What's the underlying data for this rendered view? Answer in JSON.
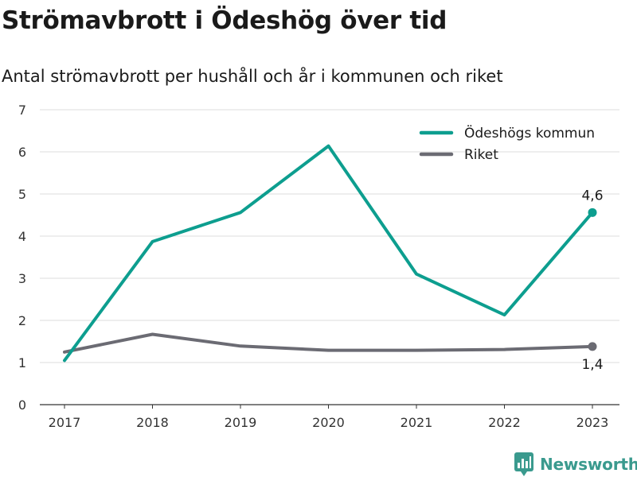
{
  "title": "Strömavbrott i Ödeshög över tid",
  "subtitle": "Antal strömavbrott per hushåll och år i kommunen och riket",
  "brand": "Newsworthy",
  "chart_data": {
    "type": "line",
    "x": [
      "2017",
      "2018",
      "2019",
      "2020",
      "2021",
      "2022",
      "2023"
    ],
    "ylim": [
      0,
      7
    ],
    "yticks": [
      0,
      1,
      2,
      3,
      4,
      5,
      6,
      7
    ],
    "grid": true,
    "legend_position": "top-right",
    "series": [
      {
        "name": "Ödeshögs kommun",
        "color": "#0d9e8f",
        "values": [
          1.05,
          3.87,
          4.56,
          6.14,
          3.1,
          2.13,
          4.56
        ],
        "end_label": "4,6"
      },
      {
        "name": "Riket",
        "color": "#6b6b73",
        "values": [
          1.25,
          1.67,
          1.39,
          1.29,
          1.29,
          1.31,
          1.38
        ],
        "end_label": "1,4"
      }
    ]
  }
}
